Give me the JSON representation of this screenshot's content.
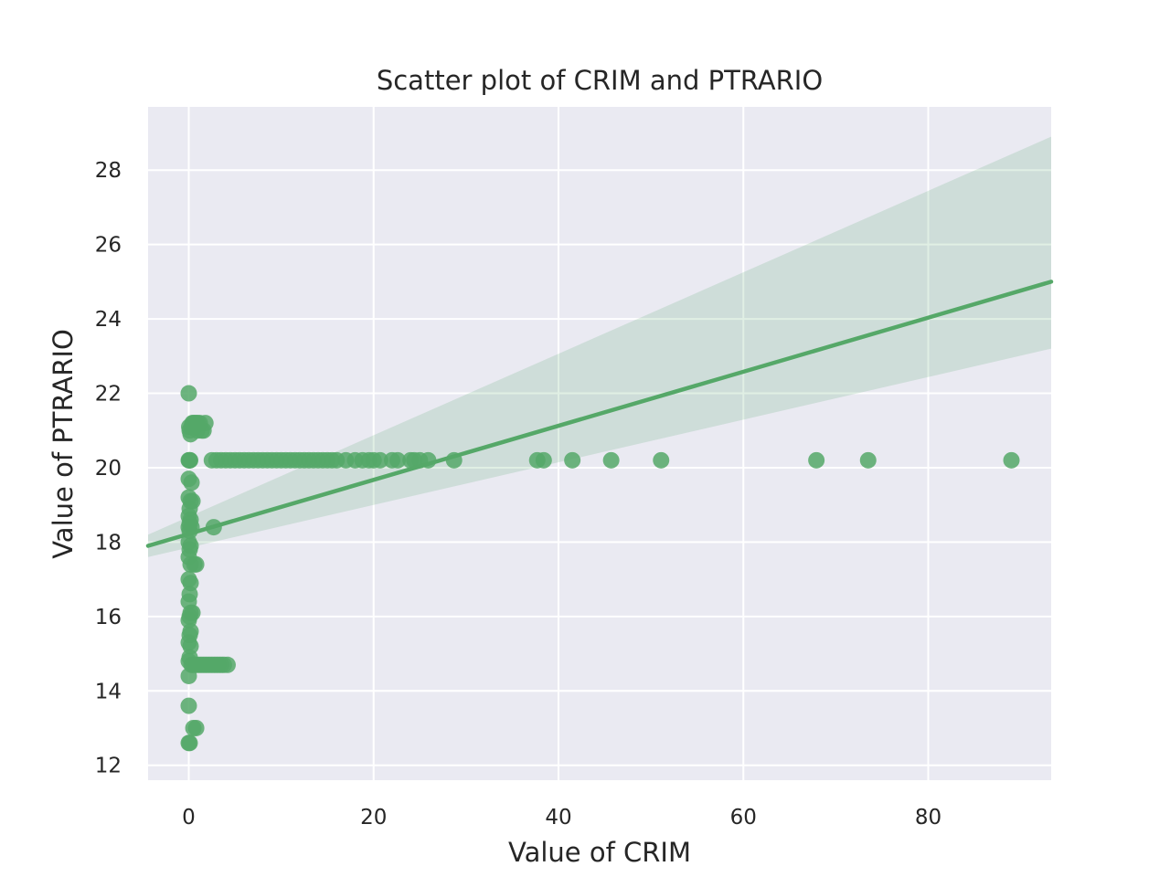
{
  "chart_data": {
    "type": "scatter",
    "title": "Scatter plot of CRIM and PTRARIO",
    "xlabel": "Value of CRIM",
    "ylabel": "Value of PTRARIO",
    "xlim": [
      -4.4,
      93.3
    ],
    "ylim": [
      11.6,
      29.7
    ],
    "xticks": [
      0,
      20,
      40,
      60,
      80
    ],
    "yticks": [
      12,
      14,
      16,
      18,
      20,
      22,
      24,
      26,
      28
    ],
    "grid": true,
    "colors": {
      "background": "#eaeaf2",
      "grid": "#ffffff",
      "point": "#55a868",
      "band": "#55a868"
    },
    "regression": {
      "x": [
        -4.4,
        93.3
      ],
      "y": [
        17.9,
        25.0
      ],
      "ci_lower": [
        17.6,
        23.2
      ],
      "ci_upper": [
        18.2,
        28.9
      ]
    },
    "points": [
      [
        0.0,
        22.0
      ],
      [
        0.05,
        21.1
      ],
      [
        0.1,
        21.0
      ],
      [
        0.2,
        20.9
      ],
      [
        0.3,
        21.1
      ],
      [
        0.4,
        21.2
      ],
      [
        0.5,
        21.2
      ],
      [
        0.6,
        21.1
      ],
      [
        0.7,
        21.2
      ],
      [
        0.8,
        21.2
      ],
      [
        0.9,
        21.0
      ],
      [
        1.0,
        21.2
      ],
      [
        1.2,
        21.2
      ],
      [
        1.4,
        21.0
      ],
      [
        1.6,
        21.0
      ],
      [
        1.8,
        21.2
      ],
      [
        0.0,
        20.2
      ],
      [
        0.05,
        20.2
      ],
      [
        0.1,
        20.2
      ],
      [
        0.15,
        20.2
      ],
      [
        2.5,
        20.2
      ],
      [
        3.0,
        20.2
      ],
      [
        3.5,
        20.2
      ],
      [
        4.0,
        20.2
      ],
      [
        4.5,
        20.2
      ],
      [
        5.0,
        20.2
      ],
      [
        5.5,
        20.2
      ],
      [
        6.0,
        20.2
      ],
      [
        6.5,
        20.2
      ],
      [
        7.0,
        20.2
      ],
      [
        7.5,
        20.2
      ],
      [
        8.0,
        20.2
      ],
      [
        8.5,
        20.2
      ],
      [
        9.0,
        20.2
      ],
      [
        9.5,
        20.2
      ],
      [
        10.0,
        20.2
      ],
      [
        10.5,
        20.2
      ],
      [
        11.0,
        20.2
      ],
      [
        11.5,
        20.2
      ],
      [
        12.0,
        20.2
      ],
      [
        12.5,
        20.2
      ],
      [
        13.0,
        20.2
      ],
      [
        13.5,
        20.2
      ],
      [
        14.0,
        20.2
      ],
      [
        14.5,
        20.2
      ],
      [
        15.0,
        20.2
      ],
      [
        15.5,
        20.2
      ],
      [
        16.0,
        20.2
      ],
      [
        17.0,
        20.2
      ],
      [
        18.0,
        20.2
      ],
      [
        18.8,
        20.2
      ],
      [
        19.5,
        20.2
      ],
      [
        20.0,
        20.2
      ],
      [
        20.7,
        20.2
      ],
      [
        22.0,
        20.2
      ],
      [
        22.6,
        20.2
      ],
      [
        24.0,
        20.2
      ],
      [
        24.4,
        20.2
      ],
      [
        25.0,
        20.2
      ],
      [
        25.9,
        20.2
      ],
      [
        28.7,
        20.2
      ],
      [
        37.7,
        20.2
      ],
      [
        38.4,
        20.2
      ],
      [
        41.5,
        20.2
      ],
      [
        45.7,
        20.2
      ],
      [
        51.1,
        20.2
      ],
      [
        67.9,
        20.2
      ],
      [
        73.5,
        20.2
      ],
      [
        89.0,
        20.2
      ],
      [
        0.0,
        19.7
      ],
      [
        0.3,
        19.6
      ],
      [
        0.0,
        19.2
      ],
      [
        0.2,
        19.1
      ],
      [
        0.4,
        19.1
      ],
      [
        0.1,
        18.9
      ],
      [
        0.0,
        18.7
      ],
      [
        0.2,
        18.6
      ],
      [
        0.1,
        18.5
      ],
      [
        0.0,
        18.4
      ],
      [
        0.3,
        18.4
      ],
      [
        0.1,
        18.3
      ],
      [
        2.7,
        18.4
      ],
      [
        0.0,
        18.0
      ],
      [
        0.2,
        17.9
      ],
      [
        0.1,
        17.8
      ],
      [
        0.0,
        17.6
      ],
      [
        0.2,
        17.4
      ],
      [
        0.6,
        17.4
      ],
      [
        0.8,
        17.4
      ],
      [
        0.0,
        17.0
      ],
      [
        0.2,
        16.9
      ],
      [
        0.1,
        16.6
      ],
      [
        0.0,
        16.4
      ],
      [
        0.2,
        16.1
      ],
      [
        0.4,
        16.1
      ],
      [
        0.1,
        16.0
      ],
      [
        0.0,
        15.9
      ],
      [
        0.2,
        15.6
      ],
      [
        0.1,
        15.5
      ],
      [
        0.0,
        15.3
      ],
      [
        0.2,
        15.2
      ],
      [
        0.1,
        14.9
      ],
      [
        0.0,
        14.8
      ],
      [
        0.3,
        14.7
      ],
      [
        0.5,
        14.7
      ],
      [
        0.8,
        14.7
      ],
      [
        1.1,
        14.7
      ],
      [
        1.4,
        14.7
      ],
      [
        1.7,
        14.7
      ],
      [
        2.0,
        14.7
      ],
      [
        2.3,
        14.7
      ],
      [
        2.6,
        14.7
      ],
      [
        2.9,
        14.7
      ],
      [
        3.2,
        14.7
      ],
      [
        3.5,
        14.7
      ],
      [
        3.8,
        14.7
      ],
      [
        4.2,
        14.7
      ],
      [
        0.0,
        14.4
      ],
      [
        0.0,
        13.6
      ],
      [
        0.5,
        13.0
      ],
      [
        0.8,
        13.0
      ],
      [
        0.0,
        12.6
      ],
      [
        0.1,
        12.6
      ]
    ]
  }
}
